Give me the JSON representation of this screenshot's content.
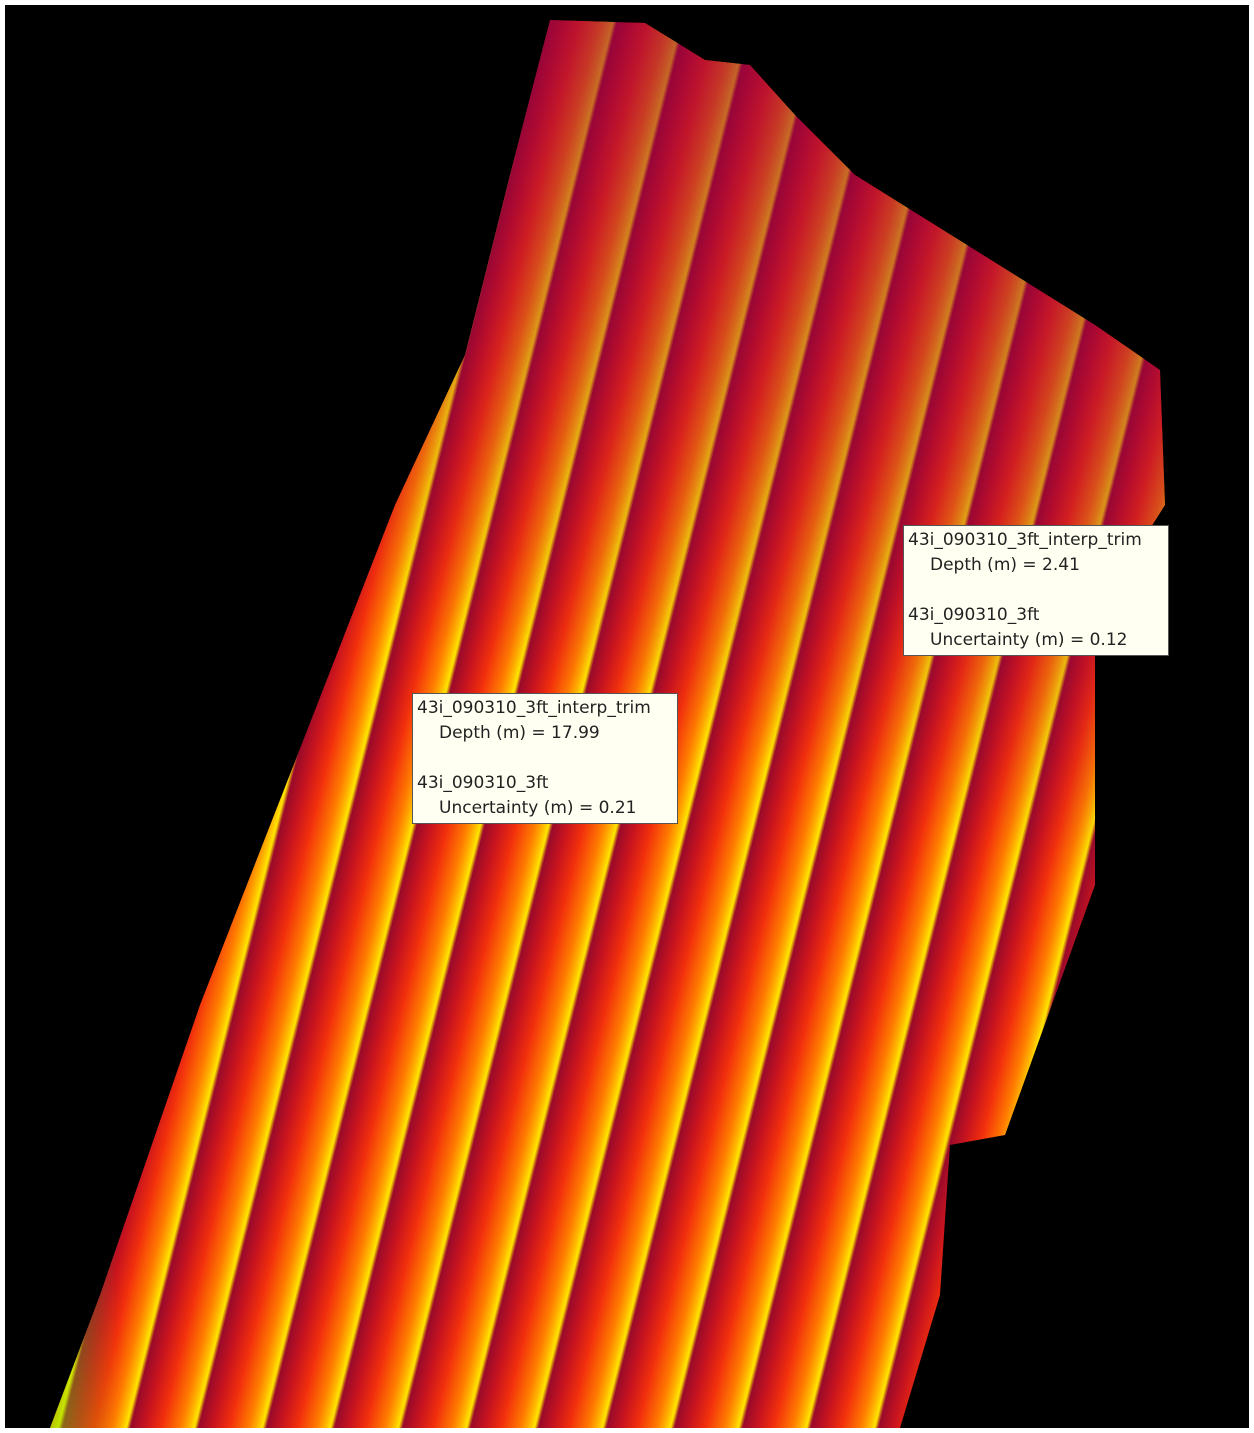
{
  "tooltips": [
    {
      "layer": "43i_090310_3ft_interp_trim",
      "depth": "Depth (m) = 17.99",
      "source": "43i_090310_3ft",
      "uncertainty": "Uncertainty (m) = 0.21"
    },
    {
      "layer": "43i_090310_3ft_interp_trim",
      "depth": "Depth (m) = 2.41",
      "source": "43i_090310_3ft",
      "uncertainty": "Uncertainty (m) = 0.12"
    }
  ]
}
